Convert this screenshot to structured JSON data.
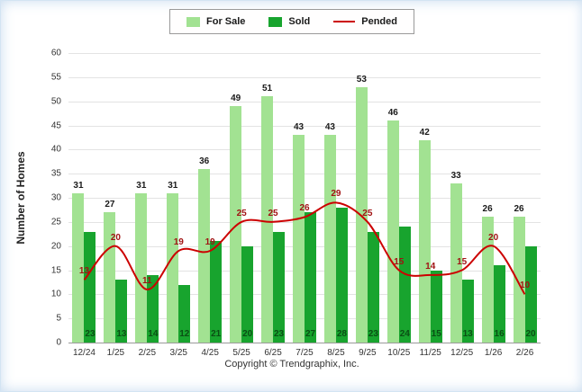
{
  "legend": {
    "for_sale": "For Sale",
    "sold": "Sold",
    "pended": "Pended"
  },
  "ylabel": "Number of Homes",
  "footer": "Copyright © Trendgraphix, Inc.",
  "colors": {
    "for_sale": "#a2e292",
    "sold": "#18a42e",
    "pended": "#cc0000",
    "for_sale_label": "#1a1a1a",
    "sold_label": "#0a4f14",
    "pended_label": "#a01313"
  },
  "chart_data": {
    "type": "bar",
    "categories": [
      "12/24",
      "1/25",
      "2/25",
      "3/25",
      "4/25",
      "5/25",
      "6/25",
      "7/25",
      "8/25",
      "9/25",
      "10/25",
      "11/25",
      "12/25",
      "1/26",
      "2/26"
    ],
    "series": [
      {
        "name": "For Sale",
        "type": "bar",
        "values": [
          31,
          27,
          31,
          31,
          36,
          49,
          51,
          43,
          43,
          53,
          46,
          42,
          33,
          26,
          26
        ]
      },
      {
        "name": "Sold",
        "type": "bar",
        "values": [
          23,
          13,
          14,
          12,
          21,
          20,
          23,
          27,
          28,
          23,
          24,
          15,
          13,
          16,
          20
        ]
      },
      {
        "name": "Pended",
        "type": "line",
        "values": [
          13,
          20,
          11,
          19,
          19,
          25,
          25,
          26,
          29,
          25,
          15,
          14,
          15,
          20,
          10
        ]
      }
    ],
    "title": "",
    "xlabel": "",
    "ylabel": "Number of Homes",
    "ylim": [
      0,
      60
    ],
    "ytick_step": 5,
    "grid": true,
    "legend_position": "top"
  }
}
